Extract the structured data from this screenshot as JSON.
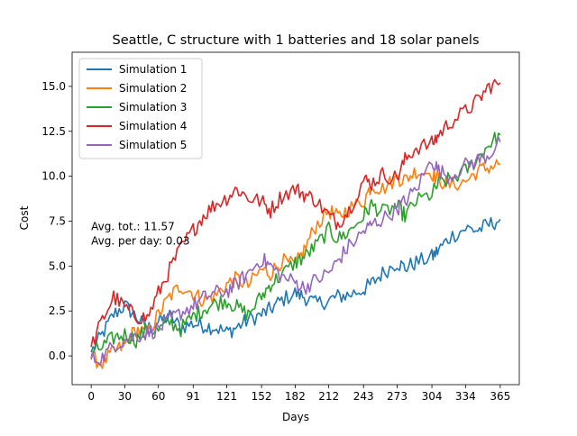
{
  "chart_data": {
    "type": "line",
    "title": "Seattle, C structure with 1 batteries and 18 solar panels",
    "xlabel": "Days",
    "ylabel": "Cost",
    "xlim": [
      -17,
      382
    ],
    "ylim": [
      -1.6,
      16.9
    ],
    "x_ticks": [
      0,
      30,
      60,
      91,
      121,
      152,
      182,
      212,
      243,
      273,
      304,
      334,
      365
    ],
    "y_ticks": [
      0.0,
      2.5,
      5.0,
      7.5,
      10.0,
      12.5,
      15.0
    ],
    "y_tick_labels": [
      "0.0",
      "2.5",
      "5.0",
      "7.5",
      "10.0",
      "12.5",
      "15.0"
    ],
    "grid": false,
    "legend_position": "top-left",
    "annotation": {
      "line1": "Avg. tot.: 11.57",
      "line2": "Avg. per day: 0.03",
      "x": 0,
      "y": 6.6
    },
    "series": [
      {
        "name": "Simulation 1",
        "color": "#1f77b4",
        "x": [
          0,
          10,
          20,
          30,
          40,
          50,
          60,
          70,
          80,
          91,
          100,
          110,
          121,
          130,
          140,
          152,
          160,
          170,
          182,
          190,
          200,
          212,
          220,
          230,
          243,
          250,
          260,
          273,
          280,
          290,
          304,
          310,
          320,
          334,
          345,
          355,
          365
        ],
        "y": [
          0.2,
          1.2,
          2.3,
          2.8,
          2.2,
          1.5,
          1.9,
          2.2,
          1.6,
          1.8,
          1.7,
          1.6,
          1.3,
          1.6,
          2.0,
          2.3,
          2.6,
          3.1,
          3.5,
          3.3,
          2.9,
          3.1,
          3.3,
          3.4,
          3.7,
          4.0,
          4.6,
          5.2,
          4.9,
          5.2,
          5.5,
          5.9,
          6.6,
          7.1,
          7.0,
          7.3,
          7.6
        ]
      },
      {
        "name": "Simulation 2",
        "color": "#ff7f0e",
        "x": [
          0,
          10,
          20,
          30,
          40,
          50,
          60,
          70,
          80,
          91,
          100,
          110,
          121,
          130,
          140,
          152,
          160,
          170,
          182,
          190,
          200,
          212,
          220,
          230,
          243,
          250,
          260,
          273,
          280,
          290,
          304,
          310,
          320,
          334,
          345,
          355,
          365
        ],
        "y": [
          -0.1,
          -0.4,
          0.2,
          0.6,
          1.5,
          1.2,
          2.3,
          3.3,
          3.9,
          3.5,
          3.1,
          3.3,
          4.0,
          4.3,
          3.9,
          4.8,
          4.6,
          5.3,
          5.0,
          5.9,
          7.2,
          8.1,
          7.7,
          8.2,
          8.6,
          9.5,
          9.3,
          9.9,
          9.8,
          10.3,
          10.2,
          9.8,
          9.5,
          9.7,
          10.3,
          10.5,
          10.7
        ]
      },
      {
        "name": "Simulation 3",
        "color": "#2ca02c",
        "x": [
          0,
          10,
          20,
          30,
          40,
          50,
          60,
          70,
          80,
          91,
          100,
          110,
          121,
          130,
          140,
          152,
          160,
          170,
          182,
          190,
          200,
          212,
          220,
          230,
          243,
          250,
          260,
          273,
          280,
          290,
          304,
          310,
          320,
          334,
          345,
          355,
          365
        ],
        "y": [
          0.1,
          0.5,
          1.0,
          1.2,
          0.9,
          1.5,
          1.4,
          1.9,
          1.5,
          2.2,
          2.6,
          2.9,
          3.1,
          2.7,
          2.3,
          3.3,
          4.0,
          4.5,
          5.2,
          5.5,
          6.1,
          7.0,
          6.5,
          6.9,
          7.8,
          8.4,
          8.0,
          8.3,
          7.8,
          8.6,
          9.0,
          9.6,
          9.8,
          10.3,
          11.0,
          11.8,
          12.3
        ]
      },
      {
        "name": "Simulation 4",
        "color": "#d62728",
        "x": [
          0,
          10,
          20,
          30,
          40,
          50,
          60,
          70,
          80,
          91,
          100,
          110,
          121,
          130,
          140,
          152,
          160,
          170,
          182,
          190,
          200,
          212,
          220,
          230,
          243,
          250,
          260,
          273,
          280,
          290,
          304,
          310,
          320,
          334,
          345,
          355,
          365
        ],
        "y": [
          0.5,
          2.0,
          3.3,
          2.7,
          2.2,
          2.1,
          3.5,
          4.8,
          6.0,
          7.0,
          7.8,
          8.4,
          8.8,
          9.3,
          8.8,
          8.6,
          8.1,
          8.9,
          9.3,
          9.0,
          8.7,
          7.8,
          7.4,
          8.1,
          9.8,
          9.6,
          10.1,
          9.9,
          10.9,
          11.6,
          11.8,
          12.3,
          13.0,
          13.6,
          14.2,
          15.0,
          15.2
        ]
      },
      {
        "name": "Simulation 5",
        "color": "#9467bd",
        "x": [
          0,
          10,
          20,
          30,
          40,
          50,
          60,
          70,
          80,
          91,
          100,
          110,
          121,
          130,
          140,
          152,
          160,
          170,
          182,
          190,
          200,
          212,
          220,
          230,
          243,
          250,
          260,
          273,
          280,
          290,
          304,
          310,
          320,
          334,
          345,
          355,
          365
        ],
        "y": [
          -0.2,
          -0.1,
          0.6,
          0.9,
          1.1,
          1.3,
          1.5,
          2.0,
          2.4,
          2.8,
          3.2,
          3.5,
          3.6,
          4.0,
          4.6,
          5.4,
          5.0,
          4.4,
          4.1,
          3.8,
          4.2,
          4.6,
          5.3,
          6.1,
          6.9,
          7.3,
          7.6,
          8.2,
          8.6,
          9.3,
          10.9,
          10.3,
          10.0,
          10.6,
          10.9,
          11.2,
          11.9
        ]
      }
    ]
  }
}
